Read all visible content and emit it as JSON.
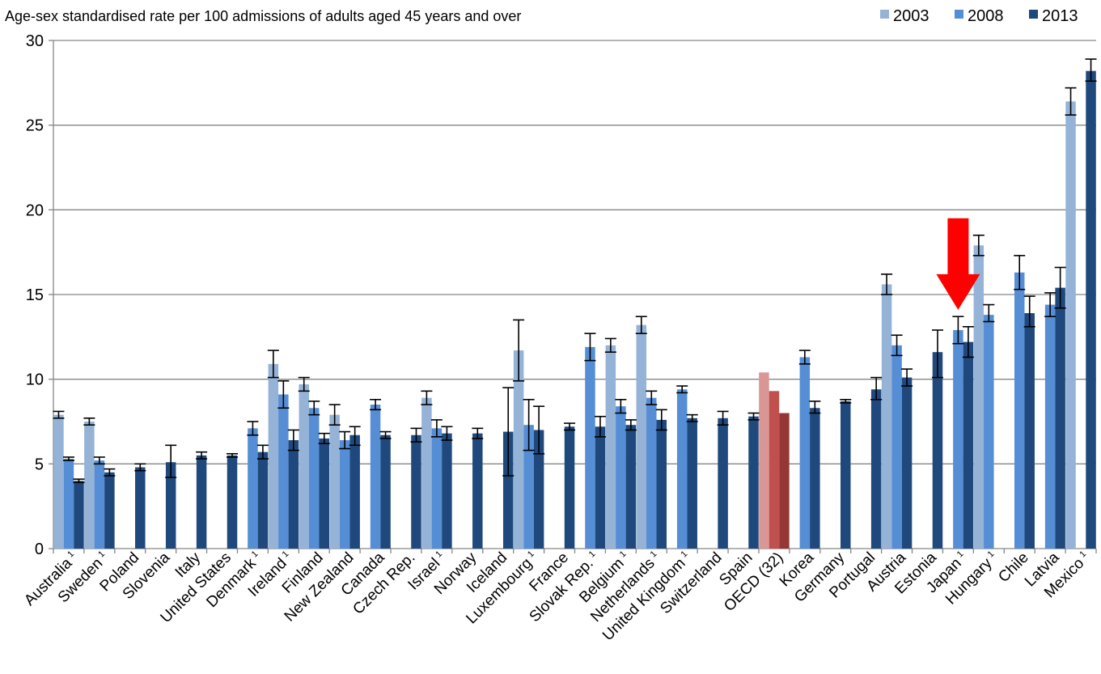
{
  "chart_data": {
    "type": "bar",
    "subtitle": "Age-sex standardised rate  per 100 admissions of adults aged 45 years and over",
    "ylim": [
      0,
      30
    ],
    "yticks": [
      0,
      5,
      10,
      15,
      20,
      25,
      30
    ],
    "grid": true,
    "legend_position": "top-right",
    "categories": [
      {
        "label": "Australia",
        "note": "1"
      },
      {
        "label": "Sweden",
        "note": "1"
      },
      {
        "label": "Poland",
        "note": ""
      },
      {
        "label": "Slovenia",
        "note": ""
      },
      {
        "label": "Italy",
        "note": ""
      },
      {
        "label": "United States",
        "note": ""
      },
      {
        "label": "Denmark",
        "note": "1"
      },
      {
        "label": "Ireland",
        "note": "1"
      },
      {
        "label": "Finland",
        "note": ""
      },
      {
        "label": "New Zealand",
        "note": ""
      },
      {
        "label": "Canada",
        "note": ""
      },
      {
        "label": "Czech Rep.",
        "note": ""
      },
      {
        "label": "Israel",
        "note": "1"
      },
      {
        "label": "Norway",
        "note": ""
      },
      {
        "label": "Iceland",
        "note": ""
      },
      {
        "label": "Luxembourg",
        "note": "1"
      },
      {
        "label": "France",
        "note": ""
      },
      {
        "label": "Slovak Rep.",
        "note": "1"
      },
      {
        "label": "Belgium",
        "note": "1"
      },
      {
        "label": "Netherlands",
        "note": "1"
      },
      {
        "label": "United Kingdom",
        "note": "1"
      },
      {
        "label": "Switzerland",
        "note": ""
      },
      {
        "label": "Spain",
        "note": ""
      },
      {
        "label": "OECD (32)",
        "note": ""
      },
      {
        "label": "Korea",
        "note": ""
      },
      {
        "label": "Germany",
        "note": ""
      },
      {
        "label": "Portugal",
        "note": ""
      },
      {
        "label": "Austria",
        "note": ""
      },
      {
        "label": "Estonia",
        "note": ""
      },
      {
        "label": "Japan",
        "note": "1"
      },
      {
        "label": "Hungary",
        "note": "1"
      },
      {
        "label": "Chile",
        "note": ""
      },
      {
        "label": "Latvia",
        "note": ""
      },
      {
        "label": "Mexico",
        "note": "1"
      }
    ],
    "highlight_category_index": 23,
    "highlight_colors": [
      "#d99694",
      "#c0504d",
      "#953735"
    ],
    "arrow": {
      "category_index": 29,
      "color": "#ff0000",
      "y_top": 19.5,
      "y_tip": 14.1
    },
    "series": [
      {
        "name": "2003",
        "color": "#95b3d7",
        "values": [
          7.9,
          7.5,
          null,
          null,
          null,
          null,
          null,
          10.9,
          9.7,
          7.9,
          null,
          null,
          8.9,
          null,
          null,
          11.7,
          null,
          null,
          12.0,
          13.2,
          null,
          null,
          null,
          10.4,
          null,
          null,
          null,
          15.6,
          null,
          null,
          17.9,
          null,
          null,
          26.4
        ],
        "error_low": [
          7.7,
          7.3,
          null,
          null,
          null,
          null,
          null,
          10.1,
          9.3,
          7.3,
          null,
          null,
          8.5,
          null,
          null,
          9.9,
          null,
          null,
          11.6,
          12.7,
          null,
          null,
          null,
          null,
          null,
          null,
          null,
          15.0,
          null,
          null,
          17.3,
          null,
          null,
          25.6
        ],
        "error_high": [
          8.1,
          7.7,
          null,
          null,
          null,
          null,
          null,
          11.7,
          10.1,
          8.5,
          null,
          null,
          9.3,
          null,
          null,
          13.5,
          null,
          null,
          12.4,
          13.7,
          null,
          null,
          null,
          null,
          null,
          null,
          null,
          16.2,
          null,
          null,
          18.5,
          null,
          null,
          27.2
        ]
      },
      {
        "name": "2008",
        "color": "#558ed5",
        "values": [
          5.3,
          5.2,
          null,
          null,
          null,
          null,
          7.1,
          9.1,
          8.3,
          6.4,
          8.5,
          null,
          7.1,
          null,
          null,
          7.3,
          null,
          11.9,
          8.4,
          8.9,
          9.4,
          null,
          null,
          9.3,
          11.3,
          null,
          null,
          12.0,
          null,
          12.9,
          13.8,
          16.3,
          14.4,
          null
        ],
        "error_low": [
          5.2,
          5.0,
          null,
          null,
          null,
          null,
          6.7,
          8.3,
          7.9,
          5.9,
          8.2,
          null,
          6.6,
          null,
          null,
          5.8,
          null,
          11.1,
          8.0,
          8.5,
          9.2,
          null,
          null,
          null,
          10.9,
          null,
          null,
          11.4,
          null,
          12.1,
          13.4,
          15.3,
          13.7,
          null
        ],
        "error_high": [
          5.4,
          5.4,
          null,
          null,
          null,
          null,
          7.5,
          9.9,
          8.7,
          6.9,
          8.8,
          null,
          7.6,
          null,
          null,
          8.8,
          null,
          12.7,
          8.8,
          9.3,
          9.6,
          null,
          null,
          null,
          11.7,
          null,
          null,
          12.6,
          null,
          13.7,
          14.4,
          17.3,
          15.1,
          null
        ]
      },
      {
        "name": "2013",
        "color": "#1f497d",
        "values": [
          4.0,
          4.5,
          4.8,
          5.1,
          5.5,
          5.5,
          5.7,
          6.4,
          6.5,
          6.7,
          6.7,
          6.7,
          6.8,
          6.8,
          6.9,
          7.0,
          7.2,
          7.2,
          7.3,
          7.6,
          7.7,
          7.7,
          7.8,
          8.0,
          8.3,
          8.7,
          9.4,
          10.1,
          11.6,
          12.2,
          null,
          13.9,
          15.4,
          28.2
        ],
        "error_low": [
          3.9,
          4.3,
          4.6,
          4.2,
          5.3,
          5.4,
          5.3,
          5.8,
          6.2,
          6.1,
          6.5,
          6.3,
          6.4,
          6.5,
          4.3,
          5.6,
          7.0,
          6.6,
          7.0,
          7.0,
          7.5,
          7.3,
          7.6,
          null,
          8.0,
          8.6,
          8.8,
          9.6,
          10.1,
          11.3,
          null,
          13.1,
          14.2,
          27.6
        ],
        "error_high": [
          4.1,
          4.7,
          5.0,
          6.1,
          5.7,
          5.6,
          6.1,
          7.0,
          6.8,
          7.2,
          6.9,
          7.1,
          7.2,
          7.1,
          9.5,
          8.4,
          7.4,
          7.8,
          7.6,
          8.2,
          7.9,
          8.1,
          8.0,
          null,
          8.7,
          8.8,
          10.1,
          10.6,
          12.9,
          13.1,
          null,
          14.9,
          16.6,
          28.9
        ]
      }
    ]
  }
}
